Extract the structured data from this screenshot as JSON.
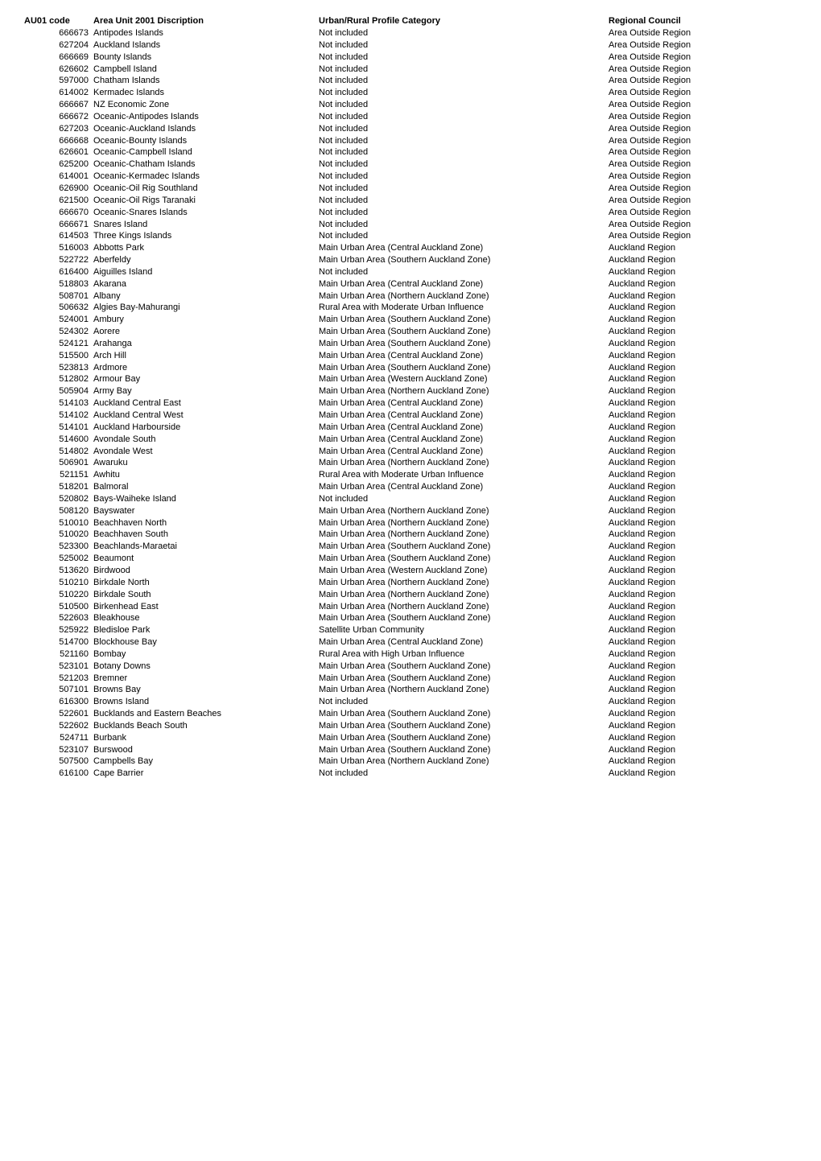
{
  "table": {
    "headers": {
      "code": "AU01 code",
      "desc": "Area Unit 2001 Discription",
      "cat": "Urban/Rural Profile Category",
      "reg": "Regional Council"
    },
    "font_size_pt": 8,
    "header_font_weight": "bold",
    "text_color": "#000000",
    "background_color": "#ffffff",
    "rows": [
      [
        "666673",
        "Antipodes Islands",
        "Not included",
        "Area Outside Region"
      ],
      [
        "627204",
        "Auckland Islands",
        "Not included",
        "Area Outside Region"
      ],
      [
        "666669",
        "Bounty Islands",
        "Not included",
        "Area Outside Region"
      ],
      [
        "626602",
        "Campbell Island",
        "Not included",
        "Area Outside Region"
      ],
      [
        "597000",
        "Chatham Islands",
        "Not included",
        "Area Outside Region"
      ],
      [
        "614002",
        "Kermadec Islands",
        "Not included",
        "Area Outside Region"
      ],
      [
        "666667",
        "NZ Economic Zone",
        "Not included",
        "Area Outside Region"
      ],
      [
        "666672",
        "Oceanic-Antipodes Islands",
        "Not included",
        "Area Outside Region"
      ],
      [
        "627203",
        "Oceanic-Auckland Islands",
        "Not included",
        "Area Outside Region"
      ],
      [
        "666668",
        "Oceanic-Bounty Islands",
        "Not included",
        "Area Outside Region"
      ],
      [
        "626601",
        "Oceanic-Campbell Island",
        "Not included",
        "Area Outside Region"
      ],
      [
        "625200",
        "Oceanic-Chatham Islands",
        "Not included",
        "Area Outside Region"
      ],
      [
        "614001",
        "Oceanic-Kermadec Islands",
        "Not included",
        "Area Outside Region"
      ],
      [
        "626900",
        "Oceanic-Oil Rig Southland",
        "Not included",
        "Area Outside Region"
      ],
      [
        "621500",
        "Oceanic-Oil Rigs Taranaki",
        "Not included",
        "Area Outside Region"
      ],
      [
        "666670",
        "Oceanic-Snares Islands",
        "Not included",
        "Area Outside Region"
      ],
      [
        "666671",
        "Snares Island",
        "Not included",
        "Area Outside Region"
      ],
      [
        "614503",
        "Three Kings Islands",
        "Not included",
        "Area Outside Region"
      ],
      [
        "516003",
        "Abbotts Park",
        "Main Urban Area (Central Auckland Zone)",
        "Auckland Region"
      ],
      [
        "522722",
        "Aberfeldy",
        "Main Urban Area (Southern Auckland Zone)",
        "Auckland Region"
      ],
      [
        "616400",
        "Aiguilles Island",
        "Not included",
        "Auckland Region"
      ],
      [
        "518803",
        "Akarana",
        "Main Urban Area (Central Auckland Zone)",
        "Auckland Region"
      ],
      [
        "508701",
        "Albany",
        "Main Urban Area (Northern Auckland Zone)",
        "Auckland Region"
      ],
      [
        "506632",
        "Algies Bay-Mahurangi",
        "Rural Area with Moderate Urban Influence",
        "Auckland Region"
      ],
      [
        "524001",
        "Ambury",
        "Main Urban Area (Southern Auckland Zone)",
        "Auckland Region"
      ],
      [
        "524302",
        "Aorere",
        "Main Urban Area (Southern Auckland Zone)",
        "Auckland Region"
      ],
      [
        "524121",
        "Arahanga",
        "Main Urban Area (Southern Auckland Zone)",
        "Auckland Region"
      ],
      [
        "515500",
        "Arch Hill",
        "Main Urban Area (Central Auckland Zone)",
        "Auckland Region"
      ],
      [
        "523813",
        "Ardmore",
        "Main Urban Area (Southern Auckland Zone)",
        "Auckland Region"
      ],
      [
        "512802",
        "Armour Bay",
        "Main Urban Area (Western Auckland Zone)",
        "Auckland Region"
      ],
      [
        "505904",
        "Army Bay",
        "Main Urban Area (Northern Auckland Zone)",
        "Auckland Region"
      ],
      [
        "514103",
        "Auckland Central East",
        "Main Urban Area (Central Auckland Zone)",
        "Auckland Region"
      ],
      [
        "514102",
        "Auckland Central West",
        "Main Urban Area (Central Auckland Zone)",
        "Auckland Region"
      ],
      [
        "514101",
        "Auckland Harbourside",
        "Main Urban Area (Central Auckland Zone)",
        "Auckland Region"
      ],
      [
        "514600",
        "Avondale South",
        "Main Urban Area (Central Auckland Zone)",
        "Auckland Region"
      ],
      [
        "514802",
        "Avondale West",
        "Main Urban Area (Central Auckland Zone)",
        "Auckland Region"
      ],
      [
        "506901",
        "Awaruku",
        "Main Urban Area (Northern Auckland Zone)",
        "Auckland Region"
      ],
      [
        "521151",
        "Awhitu",
        "Rural Area with Moderate Urban Influence",
        "Auckland Region"
      ],
      [
        "518201",
        "Balmoral",
        "Main Urban Area (Central Auckland Zone)",
        "Auckland Region"
      ],
      [
        "520802",
        "Bays-Waiheke Island",
        "Not included",
        "Auckland Region"
      ],
      [
        "508120",
        "Bayswater",
        "Main Urban Area (Northern Auckland Zone)",
        "Auckland Region"
      ],
      [
        "510010",
        "Beachhaven North",
        "Main Urban Area (Northern Auckland Zone)",
        "Auckland Region"
      ],
      [
        "510020",
        "Beachhaven South",
        "Main Urban Area (Northern Auckland Zone)",
        "Auckland Region"
      ],
      [
        "523300",
        "Beachlands-Maraetai",
        "Main Urban Area (Southern Auckland Zone)",
        "Auckland Region"
      ],
      [
        "525002",
        "Beaumont",
        "Main Urban Area (Southern Auckland Zone)",
        "Auckland Region"
      ],
      [
        "513620",
        "Birdwood",
        "Main Urban Area (Western Auckland Zone)",
        "Auckland Region"
      ],
      [
        "510210",
        "Birkdale North",
        "Main Urban Area (Northern Auckland Zone)",
        "Auckland Region"
      ],
      [
        "510220",
        "Birkdale South",
        "Main Urban Area (Northern Auckland Zone)",
        "Auckland Region"
      ],
      [
        "510500",
        "Birkenhead East",
        "Main Urban Area (Northern Auckland Zone)",
        "Auckland Region"
      ],
      [
        "522603",
        "Bleakhouse",
        "Main Urban Area (Southern Auckland Zone)",
        "Auckland Region"
      ],
      [
        "525922",
        "Bledisloe Park",
        "Satellite Urban Community",
        "Auckland Region"
      ],
      [
        "514700",
        "Blockhouse Bay",
        "Main Urban Area (Central Auckland Zone)",
        "Auckland Region"
      ],
      [
        "521160",
        "Bombay",
        "Rural Area with High Urban Influence",
        "Auckland Region"
      ],
      [
        "523101",
        "Botany Downs",
        "Main Urban Area (Southern Auckland Zone)",
        "Auckland Region"
      ],
      [
        "521203",
        "Bremner",
        "Main Urban Area (Southern Auckland Zone)",
        "Auckland Region"
      ],
      [
        "507101",
        "Browns Bay",
        "Main Urban Area (Northern Auckland Zone)",
        "Auckland Region"
      ],
      [
        "616300",
        "Browns Island",
        "Not included",
        "Auckland Region"
      ],
      [
        "522601",
        "Bucklands and Eastern Beaches",
        "Main Urban Area (Southern Auckland Zone)",
        "Auckland Region"
      ],
      [
        "522602",
        "Bucklands Beach South",
        "Main Urban Area (Southern Auckland Zone)",
        "Auckland Region"
      ],
      [
        "524711",
        "Burbank",
        "Main Urban Area (Southern Auckland Zone)",
        "Auckland Region"
      ],
      [
        "523107",
        "Burswood",
        "Main Urban Area (Southern Auckland Zone)",
        "Auckland Region"
      ],
      [
        "507500",
        "Campbells Bay",
        "Main Urban Area (Northern Auckland Zone)",
        "Auckland Region"
      ],
      [
        "616100",
        "Cape Barrier",
        "Not included",
        "Auckland Region"
      ]
    ]
  }
}
